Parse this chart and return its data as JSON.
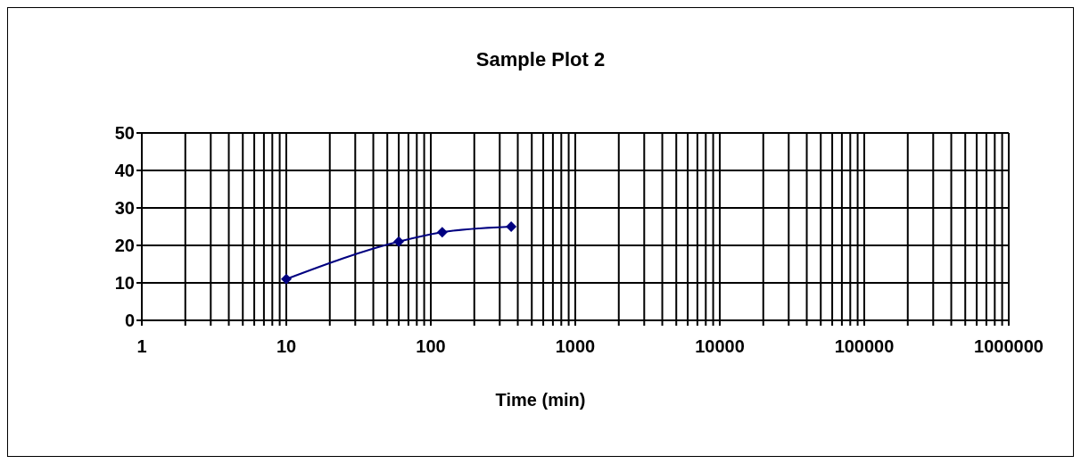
{
  "chart_data": {
    "type": "line",
    "title": "Sample Plot 2",
    "xlabel": "Time (min)",
    "x": [
      10,
      60,
      120,
      360
    ],
    "series": [
      {
        "color": "#000080",
        "values": [
          11,
          21,
          23.5,
          25
        ]
      }
    ],
    "log": "x",
    "xlim": [
      1,
      1000000
    ],
    "xticks": [
      1,
      {
        "value": 2,
        "label": null
      },
      {
        "value": 3,
        "label": null
      },
      {
        "value": 4,
        "label": null
      },
      {
        "value": 5,
        "label": null
      },
      {
        "value": 6,
        "label": null
      },
      {
        "value": 7,
        "label": null
      },
      {
        "value": 8,
        "label": null
      },
      {
        "value": 9,
        "label": null
      },
      10,
      {
        "value": 20,
        "label": null
      },
      {
        "value": 30,
        "label": null
      },
      {
        "value": 40,
        "label": null
      },
      {
        "value": 50,
        "label": null
      },
      {
        "value": 60,
        "label": null
      },
      {
        "value": 70,
        "label": null
      },
      {
        "value": 80,
        "label": null
      },
      {
        "value": 90,
        "label": null
      },
      100,
      {
        "value": 200,
        "label": null
      },
      {
        "value": 300,
        "label": null
      },
      {
        "value": 400,
        "label": null
      },
      {
        "value": 500,
        "label": null
      },
      {
        "value": 600,
        "label": null
      },
      {
        "value": 700,
        "label": null
      },
      {
        "value": 800,
        "label": null
      },
      {
        "value": 900,
        "label": null
      },
      1000,
      {
        "value": 2000,
        "label": null
      },
      {
        "value": 3000,
        "label": null
      },
      {
        "value": 4000,
        "label": null
      },
      {
        "value": 5000,
        "label": null
      },
      {
        "value": 6000,
        "label": null
      },
      {
        "value": 7000,
        "label": null
      },
      {
        "value": 8000,
        "label": null
      },
      {
        "value": 9000,
        "label": null
      },
      10000,
      {
        "value": 20000,
        "label": null
      },
      {
        "value": 30000,
        "label": null
      },
      {
        "value": 40000,
        "label": null
      },
      {
        "value": 50000,
        "label": null
      },
      {
        "value": 60000,
        "label": null
      },
      {
        "value": 70000,
        "label": null
      },
      {
        "value": 80000,
        "label": null
      },
      {
        "value": 90000,
        "label": null
      },
      100000,
      {
        "value": 200000,
        "label": null
      },
      {
        "value": 300000,
        "label": null
      },
      {
        "value": 400000,
        "label": null
      },
      {
        "value": 500000,
        "label": null
      },
      {
        "value": 600000,
        "label": null
      },
      {
        "value": 700000,
        "label": null
      },
      {
        "value": 800000,
        "label": null
      },
      {
        "value": 900000,
        "label": null
      },
      1000000
    ],
    "ylim": [
      0,
      50
    ],
    "yticks": [
      0,
      10,
      20,
      30,
      40,
      50
    ],
    "grid": true,
    "legend": false,
    "marker": "diamond",
    "line_style": "solid"
  }
}
